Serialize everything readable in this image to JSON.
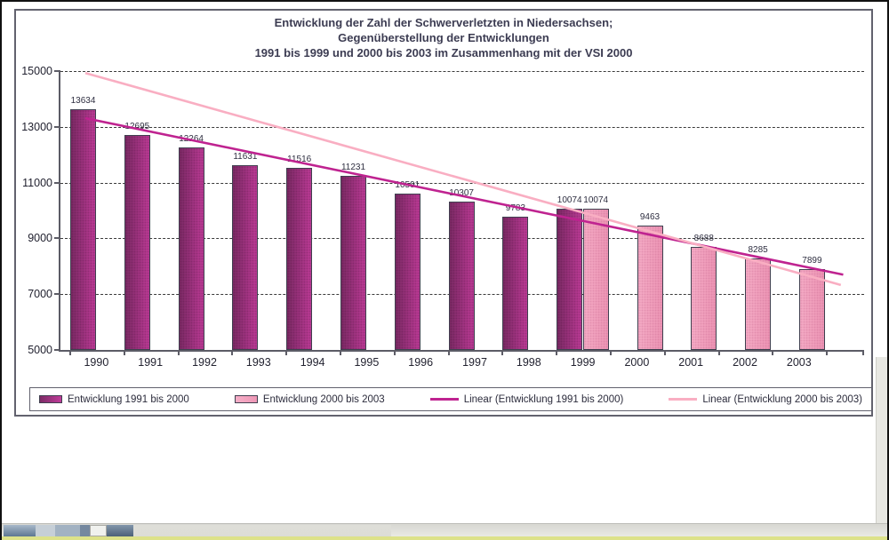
{
  "chart_data": {
    "type": "bar",
    "title_lines": [
      "Entwicklung der Zahl der Schwerverletzten in Niedersachsen;",
      "Gegenüberstellung der Entwicklungen",
      "1991 bis 1999 und 2000 bis 2003 im Zusammenhang mit der VSI 2000"
    ],
    "categories": [
      "1990",
      "1991",
      "1992",
      "1993",
      "1994",
      "1995",
      "1996",
      "1997",
      "1998",
      "1999",
      "2000",
      "2001",
      "2002",
      "2003"
    ],
    "series": [
      {
        "name": "Entwicklung 1991 bis 2000",
        "color_start": "#7d2b66",
        "color_end": "#c03c99",
        "values": [
          13634,
          12695,
          12264,
          11631,
          11516,
          11231,
          10591,
          10307,
          9783,
          10074,
          null,
          null,
          null,
          null
        ]
      },
      {
        "name": "Entwicklung 2000 bis 2003",
        "color_start": "#f6aec7",
        "color_end": "#ee97b6",
        "values": [
          null,
          null,
          null,
          null,
          null,
          null,
          null,
          null,
          null,
          10074,
          9463,
          8688,
          8285,
          7899
        ]
      }
    ],
    "trendlines": [
      {
        "name": "Linear (Entwicklung 1991 bis 2000)",
        "color": "#bf2390",
        "x1_pct": 3.1,
        "y1_value": 13310,
        "x2_pct": 97.4,
        "y2_value": 7700
      },
      {
        "name": "Linear (Entwicklung 2000 bis 2003)",
        "color": "#f9aec2",
        "x1_pct": 3.1,
        "y1_value": 14930,
        "x2_pct": 97.1,
        "y2_value": 7330
      }
    ],
    "ylim": [
      5000,
      15000
    ],
    "yticks": [
      15000,
      13000,
      11000,
      9000,
      7000,
      5000
    ],
    "grid_values": [
      15000,
      13000,
      11000,
      9000,
      7000
    ],
    "grid_style": "dashed",
    "legend_position": "bottom",
    "xlabel": "",
    "ylabel": ""
  }
}
